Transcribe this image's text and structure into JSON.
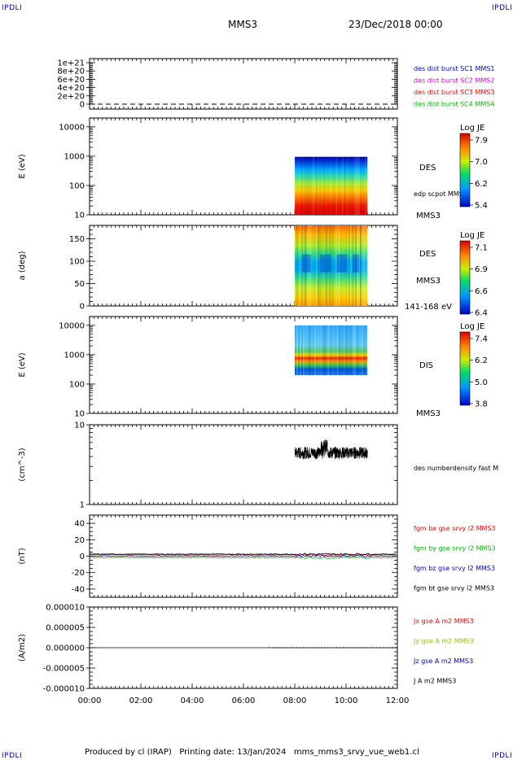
{
  "corners": {
    "tl": "IPDLI",
    "tr": "IPDLI",
    "bl": "IPDLI",
    "br": "IPDLI"
  },
  "header": {
    "title": "MMS3",
    "date": "23/Dec/2018 00:00"
  },
  "footer": {
    "text": "Produced by cl (IRAP)   Printing date: 13/Jan/2024   mms_mms3_srvy_vue_web1.cl"
  },
  "colors": {
    "red": "#ff0000",
    "magenta": "#dd00dd",
    "green": "#00bb00",
    "blue": "#0000cc",
    "black": "#000000"
  },
  "chart_data": [
    {
      "type": "line",
      "id": "p1",
      "ytick_labels": [
        "1e+21",
        "8e+20",
        "6e+20",
        "4e+20",
        "2e+20",
        "0"
      ],
      "legend": [
        {
          "label": "des dist burst SC1 MMS1",
          "color": "#0000cc"
        },
        {
          "label": "des dist burst SC2 MMS2",
          "color": "#dd00dd"
        },
        {
          "label": "des dist burst SC3 MMS3",
          "color": "#ff0000"
        },
        {
          "label": "des dist burst SC4 MMS4",
          "color": "#00bb00"
        }
      ]
    },
    {
      "type": "heatmap",
      "id": "p2",
      "ylabel": "E (eV)",
      "scale": "log",
      "ylim": [
        10,
        20000
      ],
      "yticks": [
        10,
        100,
        1000,
        10000
      ],
      "ytick_labels": [
        "10",
        "100",
        "1000",
        "10000"
      ],
      "data_x_range": [
        "08:00",
        "10:50"
      ],
      "data_y_range": [
        10,
        950
      ],
      "species": "DES",
      "side_label": "edp scpot MMS3",
      "spacecraft": "MMS3",
      "colorbar": {
        "title": "Log JE",
        "ticks": [
          "7.9",
          "7.0",
          "6.2",
          "5.4"
        ]
      }
    },
    {
      "type": "heatmap",
      "id": "p3",
      "ylabel": "a (deg)",
      "ylim": [
        0,
        180
      ],
      "yticks": [
        0,
        50,
        100,
        150
      ],
      "ytick_labels": [
        "0",
        "50",
        "100",
        "150"
      ],
      "data_x_range": [
        "08:00",
        "10:50"
      ],
      "species": "DES",
      "spacecraft": "MMS3",
      "energy_band": "141-168 eV",
      "colorbar": {
        "title": "Log JE",
        "ticks": [
          "7.1",
          "6.9",
          "6.6",
          "6.4"
        ]
      }
    },
    {
      "type": "heatmap",
      "id": "p4",
      "ylabel": "E (eV)",
      "scale": "log",
      "ylim": [
        10,
        20000
      ],
      "yticks": [
        10,
        100,
        1000,
        10000
      ],
      "ytick_labels": [
        "10",
        "100",
        "1000",
        "10000"
      ],
      "data_x_range": [
        "08:00",
        "10:50"
      ],
      "data_y_range": [
        200,
        10000
      ],
      "species": "DIS",
      "spacecraft": "MMS3",
      "colorbar": {
        "title": "Log JE",
        "ticks": [
          "7.4",
          "6.2",
          "5.0",
          "3.8"
        ]
      }
    },
    {
      "type": "line",
      "id": "p5",
      "ylabel": "(cm^-3)",
      "scale": "log",
      "ylim": [
        1,
        10
      ],
      "ytick_labels": [
        "10",
        "1"
      ],
      "data_x_range": [
        "08:00",
        "10:50"
      ],
      "typical_value": 4.5,
      "legend": [
        {
          "label": "des numberdensity fast M",
          "color": "#000000"
        }
      ]
    },
    {
      "type": "line",
      "id": "p6",
      "ylabel": "(nT)",
      "ylim": [
        -50,
        50
      ],
      "yticks": [
        40,
        20,
        0,
        -20,
        -40
      ],
      "ytick_labels": [
        "40",
        "20",
        "0",
        "-20",
        "-40"
      ],
      "legend": [
        {
          "label": "fgm bx gse srvy l2 MMS3",
          "color": "#ff0000"
        },
        {
          "label": "fgm by gse srvy l2 MMS3",
          "color": "#00bb00"
        },
        {
          "label": "fgm bz gse srvy l2 MMS3",
          "color": "#0000cc"
        },
        {
          "label": "fgm bt gse srvy l2 MMS3",
          "color": "#000000"
        }
      ]
    },
    {
      "type": "line",
      "id": "p7",
      "ylabel": "(A/m2)",
      "ylim": [
        -1e-05,
        1e-05
      ],
      "ytick_labels": [
        "0.000010",
        "0.000005",
        "0.000000",
        "-0.000005",
        "-0.000010"
      ],
      "legend": [
        {
          "label": "Jx gse A m2 MMS3",
          "color": "#ff0000"
        },
        {
          "label": "Jy gse A m2 MMS3",
          "color": "#88cc00"
        },
        {
          "label": "Jz gse A m2 MMS3",
          "color": "#0000cc"
        },
        {
          "label": "J A m2 MMS3",
          "color": "#000000"
        }
      ]
    }
  ],
  "x_axis": {
    "tick_labels": [
      "00:00",
      "02:00",
      "04:00",
      "06:00",
      "08:00",
      "10:00",
      "12:00"
    ],
    "range_hours": [
      0,
      12
    ]
  }
}
